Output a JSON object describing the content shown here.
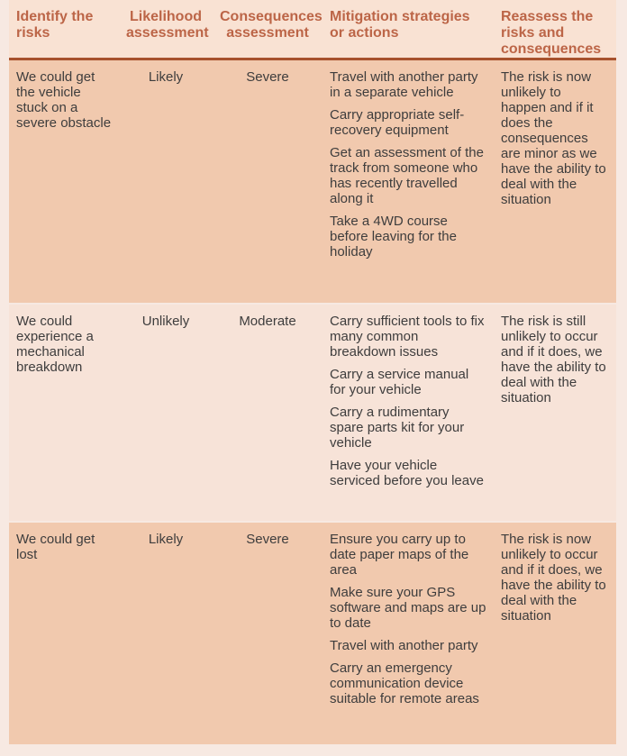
{
  "table": {
    "columns": [
      {
        "id": "risk",
        "label": "Identify the risks"
      },
      {
        "id": "likelihood",
        "label": "Likelihood assessment"
      },
      {
        "id": "consequences",
        "label": "Consequences assessment"
      },
      {
        "id": "mitigation",
        "label": "Mitigation strategies or actions"
      },
      {
        "id": "reassess",
        "label": "Reassess the risks and consequences"
      }
    ],
    "rows": [
      {
        "risk": "We could get the vehicle stuck on a severe obstacle",
        "likelihood": "Likely",
        "consequences": "Severe",
        "mitigations": [
          "Travel with another party in a separate vehicle",
          "Carry appropriate self-recovery equipment",
          "Get an assessment of the track from someone who has recently travelled along it",
          "Take a 4WD course before leaving for the holiday"
        ],
        "reassess": "The risk is now unlikely to happen and if it does the consequences are minor as we have the ability to deal with the situation"
      },
      {
        "risk": "We could experience a mechanical breakdown",
        "likelihood": "Unlikely",
        "consequences": "Moderate",
        "mitigations": [
          "Carry sufficient tools to fix many common breakdown issues",
          "Carry a service manual for your vehicle",
          "Carry a rudimentary spare parts kit for your vehicle",
          "Have your vehicle serviced before you leave"
        ],
        "reassess": "The risk is still unlikely to occur and if it does, we have the ability to deal with the situation"
      },
      {
        "risk": "We could get lost",
        "likelihood": "Likely",
        "consequences": "Severe",
        "mitigations": [
          "Ensure you carry up to date paper maps of the area",
          "Make sure your GPS software and maps are up to date",
          "Travel with another party",
          "Carry an emergency communication device suitable for remote areas"
        ],
        "reassess": "The risk is now unlikely to occur and if it does, we have the ability to deal with the situation"
      }
    ]
  },
  "colors": {
    "page_bg": "#f7e9e2",
    "header_bg": "#f9e2d3",
    "row_dark": "#f1c9ae",
    "row_light": "#f7e3d8",
    "header_text": "#bc6547",
    "header_rule": "#a7512d",
    "body_text": "#3e3d3d"
  }
}
